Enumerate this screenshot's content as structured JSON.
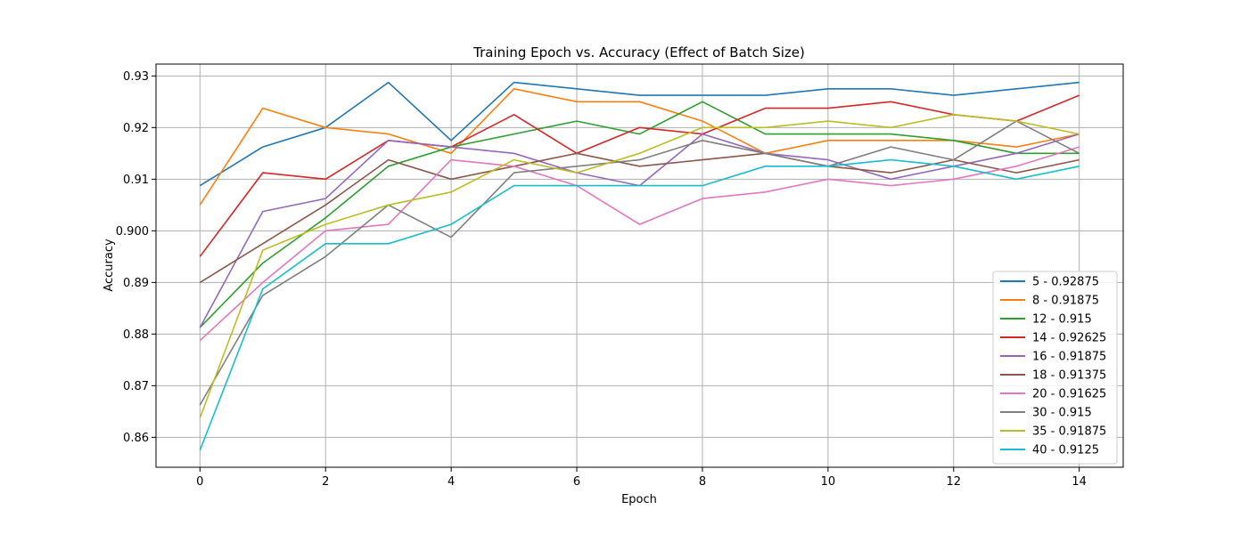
{
  "chart_data": {
    "type": "line",
    "title": "Training Epoch vs. Accuracy (Effect of Batch Size)",
    "xlabel": "Epoch",
    "ylabel": "Accuracy",
    "xlim": [
      -0.7,
      14.7
    ],
    "ylim": [
      0.8542,
      0.9323
    ],
    "xticks": [
      0,
      2,
      4,
      6,
      8,
      10,
      12,
      14
    ],
    "xtick_labels": [
      "0",
      "2",
      "4",
      "6",
      "8",
      "10",
      "12",
      "14"
    ],
    "yticks": [
      0.86,
      0.87,
      0.88,
      0.89,
      0.9,
      0.91,
      0.92,
      0.93
    ],
    "ytick_labels": [
      "0.86",
      "0.87",
      "0.88",
      "0.89",
      "0.900",
      "0.91",
      "0.92",
      "0.93"
    ],
    "grid": true,
    "legend_position": "lower-right",
    "x": [
      0,
      1,
      2,
      3,
      4,
      5,
      6,
      7,
      8,
      9,
      10,
      11,
      12,
      13,
      14
    ],
    "series": [
      {
        "name": "5 - 0.92875",
        "color": "#1f77b4",
        "values": [
          0.90875,
          0.91625,
          0.92,
          0.92875,
          0.9175,
          0.92875,
          0.9275,
          0.92625,
          0.92625,
          0.92625,
          0.9275,
          0.9275,
          0.92625,
          0.9275,
          0.92875
        ]
      },
      {
        "name": "8 - 0.91875",
        "color": "#ff7f0e",
        "values": [
          0.905,
          0.92375,
          0.92,
          0.91875,
          0.915,
          0.9275,
          0.925,
          0.925,
          0.92125,
          0.915,
          0.9175,
          0.9175,
          0.9175,
          0.91625,
          0.91875
        ]
      },
      {
        "name": "12 - 0.915",
        "color": "#2ca02c",
        "values": [
          0.88125,
          0.89375,
          0.9025,
          0.9125,
          0.91625,
          0.91875,
          0.92125,
          0.91875,
          0.925,
          0.91875,
          0.91875,
          0.91875,
          0.9175,
          0.915,
          0.915
        ]
      },
      {
        "name": "14 - 0.92625",
        "color": "#d62728",
        "values": [
          0.895,
          0.91125,
          0.91,
          0.9175,
          0.91625,
          0.9225,
          0.915,
          0.92,
          0.91875,
          0.92375,
          0.92375,
          0.925,
          0.9225,
          0.92125,
          0.92625
        ]
      },
      {
        "name": "16 - 0.91875",
        "color": "#9467bd",
        "values": [
          0.88125,
          0.90375,
          0.90625,
          0.9175,
          0.91625,
          0.915,
          0.91125,
          0.90875,
          0.91875,
          0.915,
          0.91375,
          0.91,
          0.9125,
          0.915,
          0.91875
        ]
      },
      {
        "name": "18 - 0.91375",
        "color": "#8c564b",
        "values": [
          0.89,
          0.8975,
          0.905,
          0.91375,
          0.91,
          0.9125,
          0.915,
          0.9125,
          0.91375,
          0.915,
          0.9125,
          0.91125,
          0.91375,
          0.91125,
          0.91375
        ]
      },
      {
        "name": "20 - 0.91625",
        "color": "#e377c2",
        "values": [
          0.87875,
          0.89,
          0.9,
          0.90125,
          0.91375,
          0.9125,
          0.90875,
          0.90125,
          0.90625,
          0.9075,
          0.91,
          0.90875,
          0.91,
          0.9125,
          0.91625
        ]
      },
      {
        "name": "30 - 0.915",
        "color": "#7f7f7f",
        "values": [
          0.86625,
          0.8875,
          0.895,
          0.905,
          0.89875,
          0.91125,
          0.9125,
          0.91375,
          0.9175,
          0.915,
          0.9125,
          0.91625,
          0.91375,
          0.92125,
          0.915
        ]
      },
      {
        "name": "35 - 0.91875",
        "color": "#bcbd22",
        "values": [
          0.86375,
          0.89625,
          0.90125,
          0.905,
          0.9075,
          0.91375,
          0.91125,
          0.915,
          0.92,
          0.92,
          0.92125,
          0.92,
          0.9225,
          0.92125,
          0.91875
        ]
      },
      {
        "name": "40 - 0.9125",
        "color": "#17becf",
        "values": [
          0.8575,
          0.88875,
          0.8975,
          0.8975,
          0.90125,
          0.90875,
          0.90875,
          0.90875,
          0.90875,
          0.9125,
          0.9125,
          0.91375,
          0.9125,
          0.91,
          0.9125
        ]
      }
    ]
  }
}
